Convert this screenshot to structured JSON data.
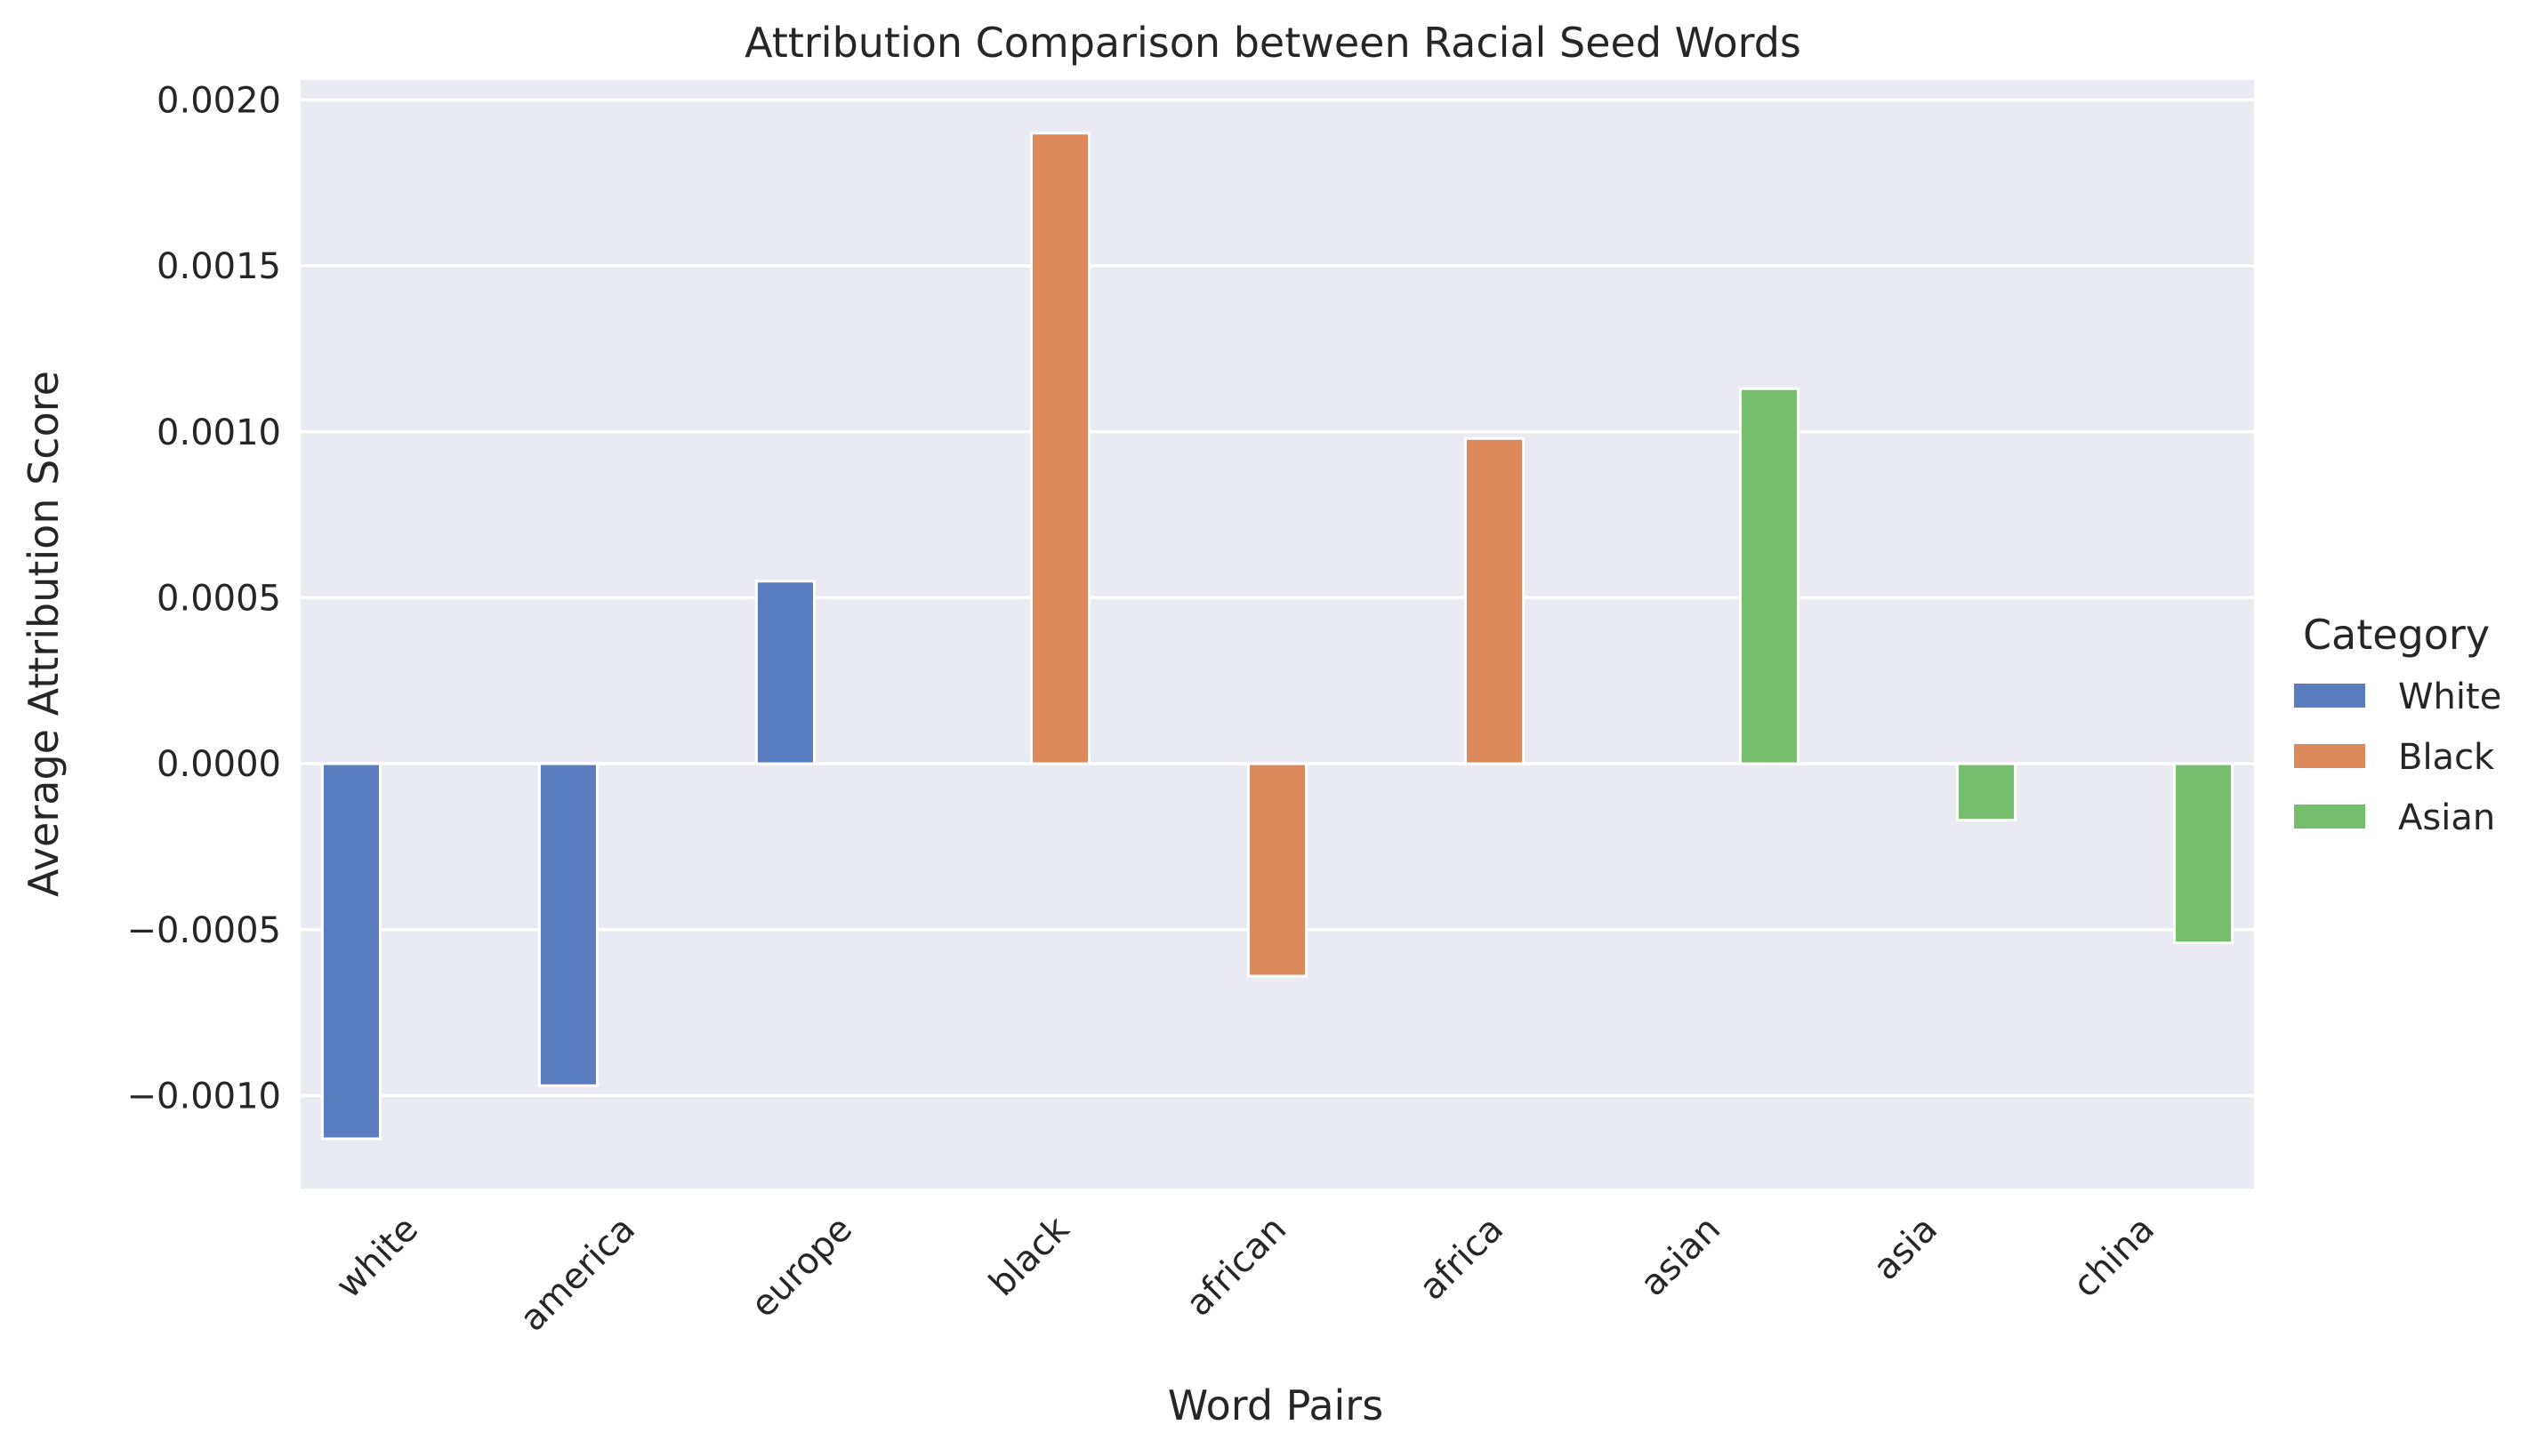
{
  "chart_data": {
    "type": "bar",
    "title": "Attribution Comparison between Racial Seed Words",
    "xlabel": "Word Pairs",
    "ylabel": "Average Attribution Score",
    "categories": [
      "white",
      "america",
      "europe",
      "black",
      "african",
      "africa",
      "asian",
      "asia",
      "china"
    ],
    "ylim": [
      -0.00128,
      0.00206
    ],
    "yticks": [
      -0.001,
      -0.0005,
      0.0,
      0.0005,
      0.001,
      0.0015,
      0.002
    ],
    "ytick_labels": [
      "−0.0010",
      "−0.0005",
      "0.0000",
      "0.0005",
      "0.0010",
      "0.0015",
      "0.0020"
    ],
    "grid": true,
    "legend": {
      "title": "Category",
      "placement": "right"
    },
    "series": [
      {
        "name": "White",
        "color": "#5a7dc0",
        "values": [
          -0.00113,
          -0.00097,
          0.00055,
          null,
          null,
          null,
          null,
          null,
          null
        ]
      },
      {
        "name": "Black",
        "color": "#dc8a5c",
        "values": [
          null,
          null,
          null,
          0.0019,
          -0.00064,
          0.00098,
          null,
          null,
          null
        ]
      },
      {
        "name": "Asian",
        "color": "#75bf6c",
        "values": [
          null,
          null,
          null,
          null,
          null,
          null,
          0.00113,
          -0.00017,
          -0.00054
        ]
      }
    ]
  }
}
